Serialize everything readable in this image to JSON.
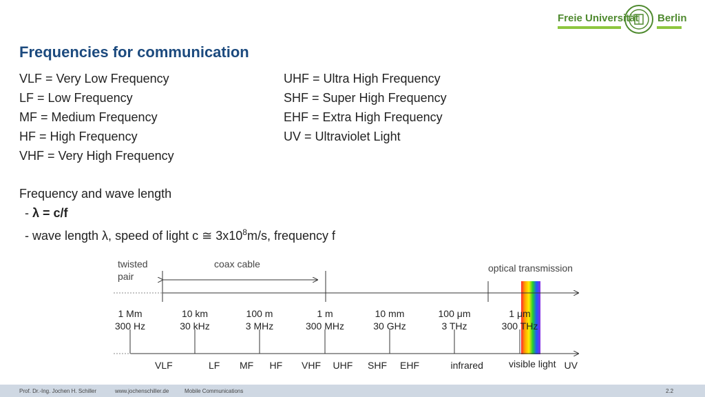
{
  "header": {
    "logo_left": "Freie Universität",
    "logo_right": "Berlin"
  },
  "title": "Frequencies for communication",
  "abbreviations_left": [
    "VLF = Very Low Frequency",
    "LF = Low Frequency",
    "MF = Medium Frequency",
    "HF = High Frequency",
    "VHF = Very High Frequency"
  ],
  "abbreviations_right": [
    "UHF = Ultra High Frequency",
    "SHF = Super High Frequency",
    "EHF = Extra High Frequency",
    "UV = Ultraviolet Light"
  ],
  "wave": {
    "heading": "Frequency and wave length",
    "formula_prefix": "- ",
    "formula": "λ = c/f",
    "description_pre": "- wave length λ, speed of light c ≅ 3x10",
    "description_sup": "8",
    "description_post": "m/s, frequency f"
  },
  "diagram": {
    "twisted_pair": [
      "twisted",
      "pair"
    ],
    "coax_cable": "coax cable",
    "optical_transmission": "optical transmission",
    "ticks": [
      {
        "wavelength": "1 Mm",
        "frequency": "300 Hz"
      },
      {
        "wavelength": "10 km",
        "frequency": "30 kHz"
      },
      {
        "wavelength": "100 m",
        "frequency": "3 MHz"
      },
      {
        "wavelength": "1 m",
        "frequency": "300 MHz"
      },
      {
        "wavelength": "10 mm",
        "frequency": "30 GHz"
      },
      {
        "wavelength": "100 μm",
        "frequency": "3 THz"
      },
      {
        "wavelength": "1 μm",
        "frequency": "300 THz"
      }
    ],
    "bands": [
      "VLF",
      "LF",
      "MF",
      "HF",
      "VHF",
      "UHF",
      "SHF",
      "EHF",
      "infrared",
      "visible light",
      "UV"
    ]
  },
  "footer": {
    "author": "Prof. Dr.-Ing. Jochen H. Schiller",
    "website": "www.jochenschiller.de",
    "course": "Mobile Communications",
    "page": "2.2"
  },
  "colors": {
    "title": "#1c4a7e",
    "logo_green": "#4f8a2f",
    "footer_bg": "#cfd8e3"
  }
}
